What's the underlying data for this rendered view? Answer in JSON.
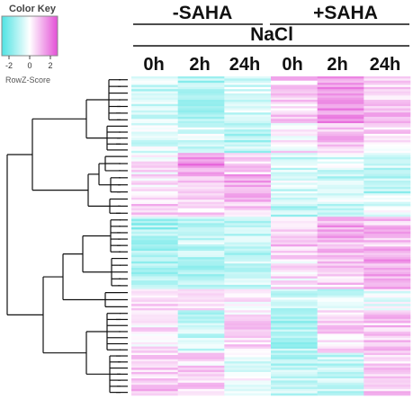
{
  "color_key": {
    "title": "Color Key",
    "ticks": [
      "-2",
      "0",
      "2"
    ],
    "label": "RowZ-Score",
    "low_color": "#4fe3e3",
    "mid_color": "#ffffff",
    "high_color": "#e34fd6"
  },
  "chart_data": {
    "type": "heatmap",
    "title": "",
    "groups": [
      {
        "name": "-SAHA",
        "columns": [
          "0h",
          "2h",
          "24h"
        ]
      },
      {
        "name": "+SAHA",
        "columns": [
          "0h",
          "2h",
          "24h"
        ]
      }
    ],
    "subheader": "NaCl",
    "columns": [
      "0h",
      "2h",
      "24h",
      "0h",
      "2h",
      "24h"
    ],
    "row_dendrogram": true,
    "zscore_range": [
      -2,
      2
    ],
    "row_blocks": [
      {
        "rows": 22,
        "values": [
          -0.6,
          -0.9,
          -0.4,
          0.5,
          1.2,
          0.6
        ]
      },
      {
        "rows": 14,
        "values": [
          -0.3,
          -0.5,
          -0.8,
          0.2,
          0.7,
          0.4
        ]
      },
      {
        "rows": 10,
        "values": [
          0.2,
          1.2,
          0.5,
          -0.5,
          -0.4,
          -0.6
        ]
      },
      {
        "rows": 10,
        "values": [
          0.4,
          0.8,
          0.9,
          -0.4,
          -0.7,
          -0.9
        ]
      },
      {
        "rows": 10,
        "values": [
          0.5,
          0.4,
          0.6,
          -0.8,
          -0.5,
          -0.2
        ]
      },
      {
        "rows": 18,
        "values": [
          -1.0,
          -0.6,
          -0.7,
          0.6,
          0.9,
          0.7
        ]
      },
      {
        "rows": 16,
        "values": [
          -0.8,
          -0.9,
          -0.5,
          0.3,
          0.5,
          0.9
        ]
      },
      {
        "rows": 10,
        "values": [
          0.5,
          0.6,
          0.2,
          -0.6,
          -0.4,
          -0.1
        ]
      },
      {
        "rows": 20,
        "values": [
          0.3,
          -0.6,
          0.4,
          -0.9,
          0.4,
          0.6
        ]
      },
      {
        "rows": 20,
        "values": [
          0.6,
          0.4,
          -0.2,
          -0.8,
          -0.6,
          0.5
        ]
      }
    ]
  }
}
